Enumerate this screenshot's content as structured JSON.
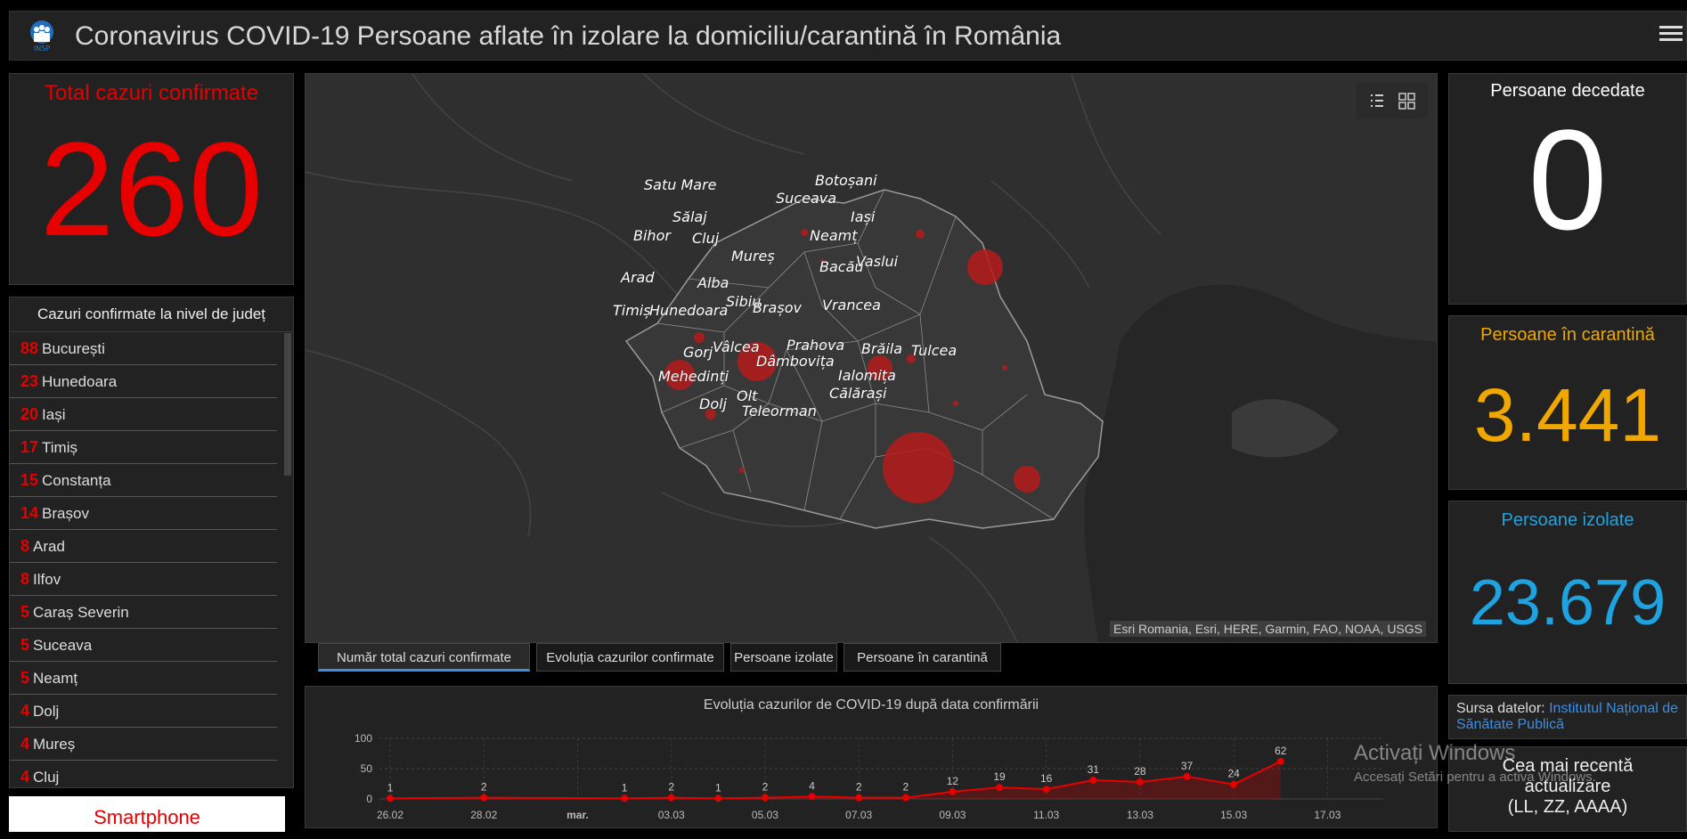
{
  "header": {
    "title": "Coronavirus COVID-19 Persoane aflate în izolare la domiciliu/carantină în România",
    "logo_text": "INSP"
  },
  "total": {
    "label": "Total cazuri confirmate",
    "value": "260"
  },
  "county_list": {
    "heading": "Cazuri confirmate la nivel de județ",
    "items": [
      {
        "count": "88",
        "name": "București"
      },
      {
        "count": "23",
        "name": "Hunedoara"
      },
      {
        "count": "20",
        "name": "Iași"
      },
      {
        "count": "17",
        "name": "Timiș"
      },
      {
        "count": "15",
        "name": "Constanța"
      },
      {
        "count": "14",
        "name": "Brașov"
      },
      {
        "count": "8",
        "name": "Arad"
      },
      {
        "count": "8",
        "name": "Ilfov"
      },
      {
        "count": "5",
        "name": "Caraș Severin"
      },
      {
        "count": "5",
        "name": "Suceava"
      },
      {
        "count": "5",
        "name": "Neamț"
      },
      {
        "count": "4",
        "name": "Dolj"
      },
      {
        "count": "4",
        "name": "Mureș"
      },
      {
        "count": "4",
        "name": "Cluj"
      }
    ]
  },
  "smartphone": {
    "label": "Smartphone"
  },
  "map": {
    "attribution": "Esri Romania, Esri, HERE, Garmin, FAO, NOAA, USGS",
    "counties": [
      "Satu Mare",
      "Botoșani",
      "Suceava",
      "Sălaj",
      "Iași",
      "Bihor",
      "Cluj",
      "Neamț",
      "Mureș",
      "Bacău",
      "Vaslui",
      "Arad",
      "Alba",
      "Sibiu",
      "Brașov",
      "Vrancea",
      "Timiș",
      "Hunedoara",
      "Vâlcea",
      "Prahova",
      "Brăila",
      "Tulcea",
      "Gorj",
      "Dâmbovița",
      "Ialomița",
      "Mehedinți",
      "Călărași",
      "Olt",
      "Dolj",
      "Teleorman"
    ]
  },
  "tabs": [
    {
      "label": "Număr total cazuri confirmate",
      "active": true
    },
    {
      "label": "Evoluția cazurilor confirmate",
      "active": false
    },
    {
      "label": "Persoane izolate",
      "active": false
    },
    {
      "label": "Persoane în carantină",
      "active": false
    }
  ],
  "deceased": {
    "label": "Persoane decedate",
    "value": "0"
  },
  "quarantine": {
    "label": "Persoane în carantină",
    "value": "3.441"
  },
  "isolated": {
    "label": "Persoane izolate",
    "value": "23.679"
  },
  "source": {
    "prefix": "Sursa datelor:",
    "link": "Institutul Național de Sănătate Publică"
  },
  "update": {
    "line1": "Cea mai recentă",
    "line2": "actualizare",
    "line3": "(LL, ZZ, AAAA)"
  },
  "watermark": {
    "line1": "Activați Windows",
    "line2": "Accesați Setări pentru a activa Windows."
  },
  "colors": {
    "red": "#e60000",
    "orange": "#f0a800",
    "blue": "#1ea3e0",
    "accent": "#3a8ee6"
  },
  "chart_data": {
    "type": "line",
    "title": "Evoluția cazurilor de COVID-19 după data confirmării",
    "x_ticks": [
      "26.02",
      "28.02",
      "mar.",
      "03.03",
      "05.03",
      "07.03",
      "09.03",
      "11.03",
      "13.03",
      "15.03",
      "17.03"
    ],
    "y_ticks": [
      0,
      50,
      100
    ],
    "ylim": [
      0,
      100
    ],
    "points": [
      {
        "date": "26.02",
        "value": 1
      },
      {
        "date": "28.02",
        "value": 2
      },
      {
        "date": "03.03",
        "value": 1
      },
      {
        "date": "04.03",
        "value": 2
      },
      {
        "date": "05.03",
        "value": 1
      },
      {
        "date": "06.03",
        "value": 2
      },
      {
        "date": "07.03",
        "value": 4
      },
      {
        "date": "08.03",
        "value": 2
      },
      {
        "date": "09.03",
        "value": 2
      },
      {
        "date": "10.03",
        "value": 12
      },
      {
        "date": "11.03",
        "value": 19
      },
      {
        "date": "12.03",
        "value": 16
      },
      {
        "date": "13.03",
        "value": 31
      },
      {
        "date": "14.03",
        "value": 28
      },
      {
        "date": "15.03",
        "value": 37
      },
      {
        "date": "16.03",
        "value": 24
      },
      {
        "date": "17.03",
        "value": 62
      }
    ]
  }
}
